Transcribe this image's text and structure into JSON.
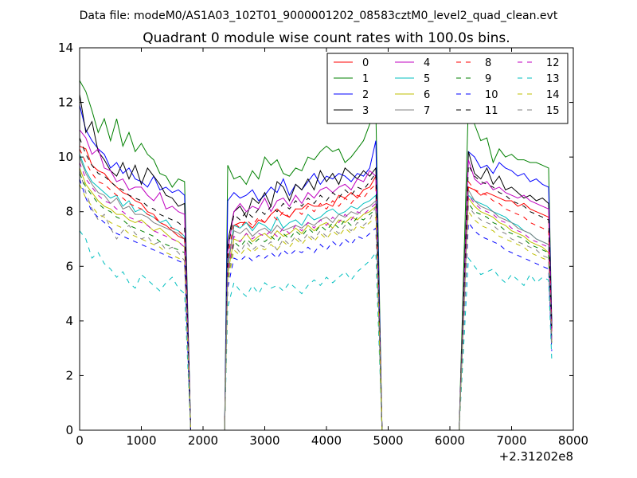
{
  "chart_data": {
    "type": "line",
    "suptitle": "Data file: modeM0/AS1A03_102T01_9000001202_08583cztM0_level2_quad_clean.evt",
    "title": "Quadrant 0 module wise count rates with 100.0s bins.",
    "xlabel": "",
    "ylabel": "",
    "x_offset_label": "+2.31202e8",
    "xlim": [
      0,
      8000
    ],
    "ylim": [
      0,
      14
    ],
    "xticks": [
      0,
      1000,
      2000,
      3000,
      4000,
      5000,
      6000,
      7000,
      8000
    ],
    "yticks": [
      0,
      2,
      4,
      6,
      8,
      10,
      12,
      14
    ],
    "grid": false,
    "legend_position": "top-right",
    "legend_columns": 4,
    "x": [
      0,
      100,
      200,
      300,
      400,
      500,
      600,
      700,
      800,
      900,
      1000,
      1100,
      1200,
      1300,
      1400,
      1500,
      1600,
      1700,
      1800,
      1850,
      2350,
      2400,
      2500,
      2600,
      2700,
      2800,
      2900,
      3000,
      3100,
      3200,
      3300,
      3400,
      3500,
      3600,
      3700,
      3800,
      3900,
      4000,
      4100,
      4200,
      4300,
      4400,
      4500,
      4600,
      4700,
      4800,
      4900,
      4950,
      5050,
      6150,
      6300,
      6400,
      6500,
      6600,
      6700,
      6800,
      6900,
      7000,
      7100,
      7200,
      7300,
      7400,
      7500,
      7600,
      7650
    ],
    "segments": [
      [
        0,
        19
      ],
      [
        19,
        20
      ],
      [
        20,
        47
      ],
      [
        47,
        48
      ],
      [
        48,
        49
      ],
      [
        49,
        64
      ]
    ],
    "series": [
      {
        "name": "0",
        "color": "#ff0000",
        "dash": "solid",
        "values": [
          10.4,
          10.3,
          9.7,
          9.5,
          9.4,
          9.1,
          8.9,
          8.7,
          8.6,
          8.4,
          8.3,
          8.0,
          7.9,
          7.6,
          7.5,
          7.3,
          7.1,
          7.0,
          0.0,
          0.0,
          0.0,
          5.9,
          7.5,
          7.6,
          7.6,
          7.4,
          7.7,
          7.6,
          7.9,
          8.1,
          7.9,
          7.8,
          8.1,
          8.1,
          8.3,
          8.2,
          8.2,
          8.3,
          8.2,
          8.6,
          8.5,
          8.7,
          8.5,
          8.8,
          8.9,
          9.3,
          0.0,
          0.0,
          0.0,
          0.0,
          8.9,
          8.8,
          8.6,
          8.7,
          8.6,
          8.5,
          8.4,
          8.4,
          8.2,
          8.3,
          8.1,
          8.0,
          7.9,
          7.8,
          3.9
        ]
      },
      {
        "name": "1",
        "color": "#008000",
        "dash": "solid",
        "values": [
          12.8,
          12.4,
          11.7,
          10.9,
          11.4,
          10.6,
          11.4,
          10.4,
          10.9,
          10.2,
          10.5,
          10.1,
          9.9,
          9.4,
          9.3,
          8.9,
          9.2,
          9.1,
          0.0,
          0.0,
          0.0,
          9.7,
          9.2,
          9.3,
          9.0,
          9.5,
          9.2,
          10.0,
          9.7,
          9.9,
          9.4,
          9.3,
          9.6,
          9.5,
          10.0,
          9.9,
          10.2,
          10.4,
          10.2,
          10.3,
          9.8,
          10.0,
          10.3,
          10.6,
          11.2,
          11.7,
          0.0,
          0.0,
          0.0,
          0.0,
          12.0,
          11.2,
          10.6,
          10.7,
          9.8,
          10.3,
          10.0,
          10.1,
          9.9,
          9.9,
          9.8,
          9.8,
          9.7,
          9.6,
          4.0
        ]
      },
      {
        "name": "2",
        "color": "#0000ff",
        "dash": "solid",
        "values": [
          11.9,
          11.0,
          10.6,
          10.3,
          10.1,
          9.6,
          9.8,
          9.4,
          9.6,
          9.2,
          9.1,
          8.9,
          9.3,
          8.8,
          8.9,
          8.7,
          8.8,
          8.6,
          0.0,
          0.0,
          0.0,
          8.4,
          8.7,
          8.5,
          8.6,
          8.8,
          8.4,
          8.6,
          8.9,
          8.7,
          9.2,
          8.6,
          9.0,
          8.8,
          9.1,
          9.4,
          9.0,
          9.3,
          9.2,
          9.4,
          9.3,
          9.1,
          9.4,
          9.3,
          9.6,
          10.6,
          0.0,
          0.0,
          0.0,
          0.0,
          10.2,
          10.0,
          9.6,
          9.7,
          9.4,
          9.8,
          9.6,
          9.5,
          9.3,
          9.4,
          9.1,
          9.2,
          9.0,
          8.9,
          3.9
        ]
      },
      {
        "name": "3",
        "color": "#000000",
        "dash": "solid",
        "values": [
          12.3,
          10.9,
          11.3,
          10.2,
          9.9,
          9.5,
          9.3,
          9.8,
          9.2,
          9.7,
          9.0,
          9.6,
          9.3,
          9.0,
          8.6,
          8.5,
          8.2,
          8.3,
          0.0,
          0.0,
          0.0,
          6.9,
          8.0,
          8.2,
          7.8,
          8.5,
          8.3,
          8.7,
          8.2,
          9.1,
          8.9,
          8.4,
          9.0,
          8.8,
          9.2,
          8.8,
          9.5,
          9.1,
          9.4,
          9.0,
          9.6,
          9.4,
          9.2,
          9.5,
          9.3,
          9.6,
          0.0,
          0.0,
          0.0,
          0.0,
          10.2,
          9.4,
          9.2,
          9.6,
          9.0,
          9.3,
          8.8,
          8.9,
          8.7,
          8.5,
          8.6,
          8.4,
          8.5,
          8.3,
          3.8
        ]
      },
      {
        "name": "4",
        "color": "#c000c0",
        "dash": "solid",
        "values": [
          11.0,
          10.7,
          10.1,
          10.3,
          9.6,
          9.5,
          9.1,
          9.2,
          8.8,
          8.9,
          8.9,
          8.6,
          8.4,
          8.7,
          8.1,
          8.2,
          8.0,
          7.9,
          0.0,
          0.0,
          0.0,
          6.5,
          8.0,
          8.3,
          8.0,
          8.2,
          8.1,
          8.5,
          8.0,
          8.4,
          8.5,
          8.2,
          8.6,
          8.3,
          8.7,
          8.5,
          8.8,
          8.9,
          8.7,
          8.9,
          9.0,
          8.8,
          9.2,
          9.1,
          9.5,
          9.3,
          0.0,
          0.0,
          0.0,
          0.0,
          9.9,
          9.2,
          9.0,
          9.1,
          8.8,
          8.9,
          8.7,
          8.6,
          8.5,
          8.6,
          8.4,
          8.3,
          8.2,
          8.1,
          3.6
        ]
      },
      {
        "name": "5",
        "color": "#00bfbf",
        "dash": "solid",
        "values": [
          10.1,
          9.5,
          9.1,
          8.9,
          8.7,
          8.5,
          8.6,
          8.2,
          8.4,
          8.0,
          8.1,
          7.9,
          7.8,
          7.6,
          7.7,
          7.4,
          7.3,
          7.1,
          0.0,
          0.0,
          0.0,
          6.0,
          7.5,
          7.4,
          7.6,
          7.3,
          7.6,
          7.5,
          7.3,
          7.8,
          7.4,
          7.6,
          7.7,
          7.5,
          7.9,
          7.7,
          7.8,
          8.0,
          8.1,
          7.9,
          8.0,
          8.2,
          8.1,
          8.3,
          8.4,
          8.6,
          0.0,
          0.0,
          0.0,
          0.0,
          8.6,
          8.4,
          8.3,
          8.2,
          8.0,
          7.9,
          7.8,
          7.6,
          7.5,
          7.3,
          7.2,
          7.0,
          6.9,
          6.8,
          3.3
        ]
      },
      {
        "name": "6",
        "color": "#bfbf00",
        "dash": "solid",
        "values": [
          9.6,
          9.0,
          8.7,
          8.4,
          8.2,
          8.1,
          7.9,
          7.9,
          7.7,
          7.6,
          7.7,
          7.5,
          7.3,
          7.4,
          7.2,
          7.0,
          6.9,
          6.7,
          0.0,
          0.0,
          0.0,
          5.7,
          7.0,
          6.9,
          7.2,
          6.9,
          7.1,
          7.2,
          7.0,
          7.3,
          7.1,
          7.2,
          7.4,
          7.2,
          7.5,
          7.3,
          7.5,
          7.6,
          7.4,
          7.7,
          7.6,
          7.8,
          7.7,
          7.9,
          8.0,
          8.2,
          0.0,
          0.0,
          0.0,
          0.0,
          8.5,
          8.2,
          8.0,
          7.9,
          7.8,
          7.6,
          7.5,
          7.3,
          7.2,
          7.1,
          6.9,
          6.8,
          6.7,
          6.5,
          3.2
        ]
      },
      {
        "name": "7",
        "color": "#808080",
        "dash": "solid",
        "values": [
          10.0,
          9.4,
          9.0,
          8.7,
          8.6,
          8.3,
          8.5,
          8.1,
          8.2,
          7.9,
          7.9,
          7.8,
          7.6,
          7.5,
          7.4,
          7.3,
          7.2,
          7.0,
          0.0,
          0.0,
          0.0,
          6.2,
          7.3,
          7.2,
          7.4,
          7.1,
          7.3,
          7.4,
          7.2,
          7.5,
          7.3,
          7.4,
          7.5,
          7.4,
          7.6,
          7.5,
          7.7,
          7.8,
          7.6,
          7.9,
          7.8,
          8.0,
          7.9,
          8.1,
          8.2,
          8.4,
          0.0,
          0.0,
          0.0,
          0.0,
          8.8,
          8.4,
          8.2,
          8.1,
          8.0,
          7.8,
          7.7,
          7.6,
          7.4,
          7.3,
          7.2,
          7.0,
          6.9,
          6.8,
          3.4
        ]
      },
      {
        "name": "8",
        "color": "#ff0000",
        "dash": "dashed",
        "values": [
          10.3,
          9.8,
          9.4,
          9.1,
          9.0,
          8.8,
          8.6,
          8.5,
          8.3,
          8.2,
          8.1,
          7.9,
          7.8,
          7.6,
          7.5,
          7.4,
          7.3,
          7.1,
          0.0,
          0.0,
          0.0,
          6.3,
          7.6,
          7.4,
          7.7,
          7.5,
          7.8,
          7.6,
          7.9,
          7.7,
          8.0,
          7.8,
          8.1,
          7.9,
          8.2,
          8.0,
          8.3,
          8.1,
          8.4,
          8.2,
          8.5,
          8.3,
          8.6,
          8.5,
          8.8,
          9.0,
          0.0,
          0.0,
          0.0,
          0.0,
          9.1,
          8.8,
          8.7,
          8.6,
          8.4,
          8.3,
          8.1,
          8.0,
          7.9,
          7.8,
          7.6,
          7.5,
          7.4,
          7.3,
          3.6
        ]
      },
      {
        "name": "9",
        "color": "#008000",
        "dash": "dashed",
        "values": [
          9.4,
          8.9,
          8.6,
          8.3,
          8.1,
          8.0,
          7.8,
          7.7,
          7.5,
          7.4,
          7.3,
          7.2,
          7.1,
          6.9,
          6.8,
          6.7,
          6.6,
          6.5,
          0.0,
          0.0,
          0.0,
          5.5,
          6.9,
          6.7,
          7.0,
          6.8,
          7.0,
          6.9,
          7.1,
          6.9,
          7.2,
          7.0,
          7.3,
          7.1,
          7.4,
          7.2,
          7.5,
          7.3,
          7.6,
          7.4,
          7.7,
          7.5,
          7.8,
          7.7,
          7.9,
          8.1,
          0.0,
          0.0,
          0.0,
          0.0,
          8.3,
          8.0,
          7.9,
          7.8,
          7.6,
          7.5,
          7.3,
          7.2,
          7.1,
          7.0,
          6.8,
          6.7,
          6.6,
          6.5,
          3.2
        ]
      },
      {
        "name": "10",
        "color": "#0000ff",
        "dash": "dashed",
        "values": [
          9.2,
          8.5,
          8.0,
          7.8,
          7.6,
          7.4,
          7.2,
          7.1,
          7.0,
          6.9,
          6.8,
          6.7,
          6.6,
          6.5,
          6.4,
          6.3,
          6.2,
          6.1,
          0.0,
          0.0,
          0.0,
          5.2,
          6.3,
          6.2,
          6.4,
          6.2,
          6.4,
          6.3,
          6.5,
          6.3,
          6.6,
          6.4,
          6.6,
          6.5,
          6.7,
          6.5,
          6.8,
          6.6,
          6.9,
          6.7,
          7.0,
          6.8,
          7.1,
          7.0,
          7.2,
          7.4,
          0.0,
          0.0,
          0.0,
          0.0,
          7.6,
          7.3,
          7.1,
          7.0,
          6.9,
          6.8,
          6.6,
          6.5,
          6.4,
          6.3,
          6.2,
          6.1,
          6.0,
          5.9,
          2.9
        ]
      },
      {
        "name": "11",
        "color": "#000000",
        "dash": "dashed",
        "values": [
          10.7,
          10.1,
          9.7,
          9.4,
          9.3,
          9.1,
          8.9,
          8.8,
          8.6,
          8.5,
          8.4,
          8.2,
          8.1,
          7.9,
          7.8,
          7.7,
          7.6,
          7.4,
          0.0,
          0.0,
          0.0,
          6.6,
          7.9,
          7.7,
          8.0,
          7.8,
          8.1,
          7.9,
          8.2,
          8.0,
          8.3,
          8.1,
          8.4,
          8.2,
          8.5,
          8.3,
          8.6,
          8.4,
          8.7,
          8.5,
          8.8,
          8.6,
          8.9,
          8.8,
          9.1,
          9.4,
          0.0,
          0.0,
          0.0,
          0.0,
          9.7,
          9.3,
          9.1,
          9.0,
          8.9,
          8.7,
          8.6,
          8.4,
          8.3,
          8.2,
          8.0,
          7.9,
          7.8,
          7.7,
          3.7
        ]
      },
      {
        "name": "12",
        "color": "#c000c0",
        "dash": "dashed",
        "values": [
          9.8,
          9.2,
          8.9,
          8.6,
          8.4,
          8.3,
          8.1,
          8.0,
          7.8,
          7.7,
          7.6,
          7.5,
          7.3,
          7.2,
          7.1,
          7.0,
          6.9,
          6.7,
          0.0,
          0.0,
          0.0,
          5.8,
          7.1,
          6.9,
          7.2,
          7.0,
          7.2,
          7.1,
          7.3,
          7.1,
          7.4,
          7.2,
          7.5,
          7.3,
          7.6,
          7.4,
          7.7,
          7.5,
          7.8,
          7.6,
          7.9,
          7.7,
          8.0,
          7.9,
          8.1,
          8.3,
          0.0,
          0.0,
          0.0,
          0.0,
          8.6,
          8.3,
          8.1,
          8.0,
          7.9,
          7.7,
          7.6,
          7.4,
          7.3,
          7.2,
          7.0,
          6.9,
          6.8,
          6.7,
          3.3
        ]
      },
      {
        "name": "13",
        "color": "#00bfbf",
        "dash": "dashed",
        "values": [
          7.3,
          7.0,
          6.3,
          6.5,
          6.1,
          5.9,
          5.6,
          5.8,
          5.4,
          5.2,
          5.7,
          5.5,
          5.3,
          5.1,
          5.4,
          5.6,
          5.2,
          5.0,
          0.0,
          0.0,
          0.0,
          4.5,
          5.4,
          5.1,
          4.9,
          5.3,
          5.0,
          5.4,
          5.2,
          5.3,
          5.1,
          5.4,
          5.2,
          5.0,
          5.3,
          5.5,
          5.3,
          5.6,
          5.4,
          5.6,
          5.8,
          5.5,
          5.8,
          6.0,
          6.2,
          6.5,
          0.0,
          0.0,
          0.0,
          0.0,
          6.3,
          6.0,
          5.7,
          5.8,
          5.9,
          5.6,
          5.4,
          5.7,
          5.5,
          5.3,
          5.7,
          5.4,
          5.6,
          5.5,
          2.6
        ]
      },
      {
        "name": "14",
        "color": "#bfbf00",
        "dash": "dashed",
        "values": [
          9.0,
          8.5,
          8.2,
          7.9,
          7.8,
          7.6,
          7.5,
          7.4,
          7.2,
          7.1,
          7.0,
          6.9,
          6.8,
          6.7,
          6.5,
          6.4,
          6.3,
          6.2,
          0.0,
          0.0,
          0.0,
          5.4,
          6.6,
          6.4,
          6.7,
          6.5,
          6.7,
          6.6,
          6.8,
          6.6,
          6.9,
          6.7,
          7.0,
          6.8,
          7.1,
          6.9,
          7.2,
          7.0,
          7.3,
          7.1,
          7.4,
          7.2,
          7.5,
          7.4,
          7.6,
          7.8,
          0.0,
          0.0,
          0.0,
          0.0,
          8.0,
          7.7,
          7.5,
          7.4,
          7.3,
          7.1,
          7.0,
          6.9,
          6.8,
          6.7,
          6.5,
          6.4,
          6.3,
          6.2,
          3.1
        ]
      },
      {
        "name": "15",
        "color": "#808080",
        "dash": "dashed",
        "values": [
          9.5,
          8.7,
          8.1,
          7.7,
          7.9,
          7.4,
          7.0,
          7.3,
          7.5,
          7.2,
          7.0,
          7.1,
          6.8,
          6.9,
          6.6,
          6.7,
          6.5,
          6.2,
          0.0,
          0.0,
          0.0,
          5.6,
          6.8,
          6.5,
          6.9,
          6.6,
          6.8,
          6.7,
          6.9,
          6.6,
          7.0,
          6.8,
          7.1,
          6.9,
          7.2,
          7.0,
          7.3,
          7.1,
          7.4,
          7.2,
          7.5,
          7.3,
          7.6,
          7.5,
          7.7,
          8.2,
          0.0,
          0.0,
          0.0,
          0.0,
          8.2,
          7.9,
          7.7,
          7.6,
          7.5,
          7.3,
          7.2,
          7.0,
          6.9,
          6.8,
          6.7,
          6.6,
          6.4,
          6.3,
          3.1
        ]
      }
    ]
  }
}
